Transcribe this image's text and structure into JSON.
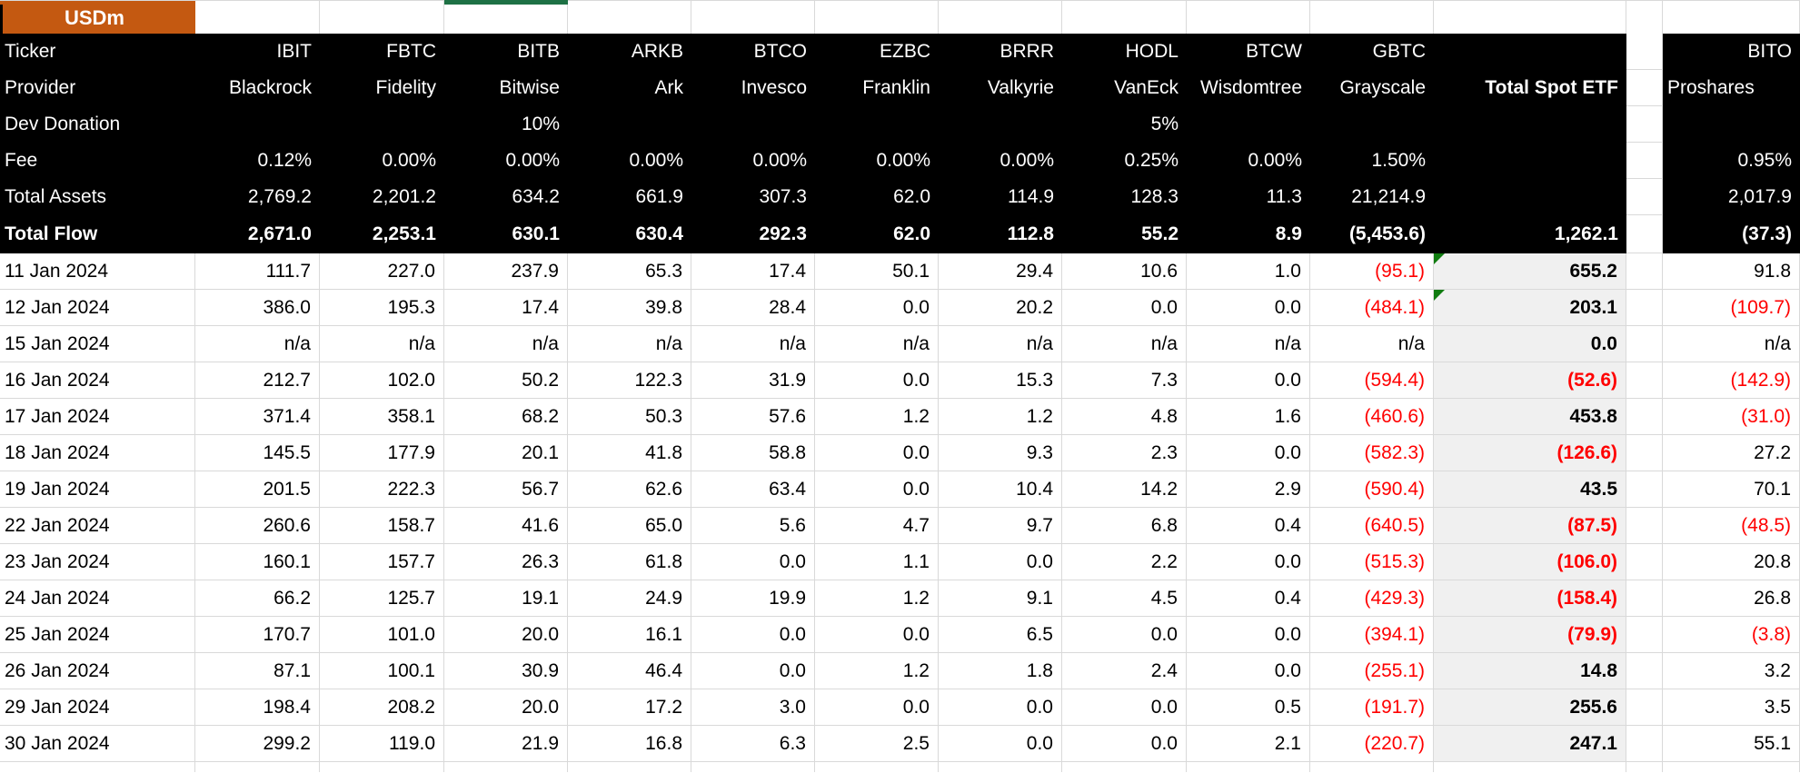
{
  "sheet": {
    "unit_label": "USDm",
    "row_header_labels": [
      "Ticker",
      "Provider",
      "Dev Donation",
      "Fee",
      "Total Assets",
      "Total Flow"
    ],
    "etf_columns": [
      {
        "ticker": "IBIT",
        "provider": "Blackrock",
        "dev_donation": "",
        "fee": "0.12%",
        "total_assets": "2,769.2",
        "total_flow": "2,671.0"
      },
      {
        "ticker": "FBTC",
        "provider": "Fidelity",
        "dev_donation": "",
        "fee": "0.00%",
        "total_assets": "2,201.2",
        "total_flow": "2,253.1"
      },
      {
        "ticker": "BITB",
        "provider": "Bitwise",
        "dev_donation": "10%",
        "fee": "0.00%",
        "total_assets": "634.2",
        "total_flow": "630.1"
      },
      {
        "ticker": "ARKB",
        "provider": "Ark",
        "dev_donation": "",
        "fee": "0.00%",
        "total_assets": "661.9",
        "total_flow": "630.4"
      },
      {
        "ticker": "BTCO",
        "provider": "Invesco",
        "dev_donation": "",
        "fee": "0.00%",
        "total_assets": "307.3",
        "total_flow": "292.3"
      },
      {
        "ticker": "EZBC",
        "provider": "Franklin",
        "dev_donation": "",
        "fee": "0.00%",
        "total_assets": "62.0",
        "total_flow": "62.0"
      },
      {
        "ticker": "BRRR",
        "provider": "Valkyrie",
        "dev_donation": "",
        "fee": "0.00%",
        "total_assets": "114.9",
        "total_flow": "112.8"
      },
      {
        "ticker": "HODL",
        "provider": "VanEck",
        "dev_donation": "5%",
        "fee": "0.25%",
        "total_assets": "128.3",
        "total_flow": "55.2"
      },
      {
        "ticker": "BTCW",
        "provider": "Wisdomtree",
        "dev_donation": "",
        "fee": "0.00%",
        "total_assets": "11.3",
        "total_flow": "8.9"
      },
      {
        "ticker": "GBTC",
        "provider": "Grayscale",
        "dev_donation": "",
        "fee": "1.50%",
        "total_assets": "21,214.9",
        "total_flow": "(5,453.6)"
      }
    ],
    "total_column": {
      "header": "Total Spot ETF",
      "total_flow": "1,262.1"
    },
    "bito_column": {
      "ticker": "BITO",
      "provider": "Proshares",
      "dev_donation": "",
      "fee": "0.95%",
      "total_assets": "2,017.9",
      "total_flow": "(37.3)"
    },
    "daily_rows": [
      {
        "date": "11 Jan 2024",
        "values": [
          "111.7",
          "227.0",
          "237.9",
          "65.3",
          "17.4",
          "50.1",
          "29.4",
          "10.6",
          "1.0",
          "(95.1)"
        ],
        "total": "655.2",
        "bito": "91.8",
        "flag": true
      },
      {
        "date": "12 Jan 2024",
        "values": [
          "386.0",
          "195.3",
          "17.4",
          "39.8",
          "28.4",
          "0.0",
          "20.2",
          "0.0",
          "0.0",
          "(484.1)"
        ],
        "total": "203.1",
        "bito": "(109.7)",
        "flag": true
      },
      {
        "date": "15 Jan 2024",
        "values": [
          "n/a",
          "n/a",
          "n/a",
          "n/a",
          "n/a",
          "n/a",
          "n/a",
          "n/a",
          "n/a",
          "n/a"
        ],
        "total": "0.0",
        "bito": "n/a",
        "flag": false
      },
      {
        "date": "16 Jan 2024",
        "values": [
          "212.7",
          "102.0",
          "50.2",
          "122.3",
          "31.9",
          "0.0",
          "15.3",
          "7.3",
          "0.0",
          "(594.4)"
        ],
        "total": "(52.6)",
        "bito": "(142.9)",
        "flag": false
      },
      {
        "date": "17 Jan 2024",
        "values": [
          "371.4",
          "358.1",
          "68.2",
          "50.3",
          "57.6",
          "1.2",
          "1.2",
          "4.8",
          "1.6",
          "(460.6)"
        ],
        "total": "453.8",
        "bito": "(31.0)",
        "flag": false
      },
      {
        "date": "18 Jan 2024",
        "values": [
          "145.5",
          "177.9",
          "20.1",
          "41.8",
          "58.8",
          "0.0",
          "9.3",
          "2.3",
          "0.0",
          "(582.3)"
        ],
        "total": "(126.6)",
        "bito": "27.2",
        "flag": false
      },
      {
        "date": "19 Jan 2024",
        "values": [
          "201.5",
          "222.3",
          "56.7",
          "62.6",
          "63.4",
          "0.0",
          "10.4",
          "14.2",
          "2.9",
          "(590.4)"
        ],
        "total": "43.5",
        "bito": "70.1",
        "flag": false
      },
      {
        "date": "22 Jan 2024",
        "values": [
          "260.6",
          "158.7",
          "41.6",
          "65.0",
          "5.6",
          "4.7",
          "9.7",
          "6.8",
          "0.4",
          "(640.5)"
        ],
        "total": "(87.5)",
        "bito": "(48.5)",
        "flag": false
      },
      {
        "date": "23 Jan 2024",
        "values": [
          "160.1",
          "157.7",
          "26.3",
          "61.8",
          "0.0",
          "1.1",
          "0.0",
          "2.2",
          "0.0",
          "(515.3)"
        ],
        "total": "(106.0)",
        "bito": "20.8",
        "flag": false
      },
      {
        "date": "24 Jan 2024",
        "values": [
          "66.2",
          "125.7",
          "19.1",
          "24.9",
          "19.9",
          "1.2",
          "9.1",
          "4.5",
          "0.4",
          "(429.3)"
        ],
        "total": "(158.4)",
        "bito": "26.8",
        "flag": false
      },
      {
        "date": "25 Jan 2024",
        "values": [
          "170.7",
          "101.0",
          "20.0",
          "16.1",
          "0.0",
          "0.0",
          "6.5",
          "0.0",
          "0.0",
          "(394.1)"
        ],
        "total": "(79.9)",
        "bito": "(3.8)",
        "flag": false
      },
      {
        "date": "26 Jan 2024",
        "values": [
          "87.1",
          "100.1",
          "30.9",
          "46.4",
          "0.0",
          "1.2",
          "1.8",
          "2.4",
          "0.0",
          "(255.1)"
        ],
        "total": "14.8",
        "bito": "3.2",
        "flag": false
      },
      {
        "date": "29 Jan 2024",
        "values": [
          "198.4",
          "208.2",
          "20.0",
          "17.2",
          "3.0",
          "0.0",
          "0.0",
          "0.0",
          "0.5",
          "(191.7)"
        ],
        "total": "255.6",
        "bito": "3.5",
        "flag": false
      },
      {
        "date": "30 Jan 2024",
        "values": [
          "299.2",
          "119.0",
          "21.9",
          "16.8",
          "6.3",
          "2.5",
          "0.0",
          "0.0",
          "2.1",
          "(220.7)"
        ],
        "total": "247.1",
        "bito": "55.1",
        "flag": false
      }
    ],
    "colors": {
      "accent_orange": "#C45911",
      "negative_red": "#FF0000",
      "header_black": "#000000",
      "total_column_gray": "#F0F0F0",
      "gridline_gray": "#D9D9D9",
      "selection_green": "#1E7145",
      "flag_triangle_green": "#107C10"
    }
  }
}
